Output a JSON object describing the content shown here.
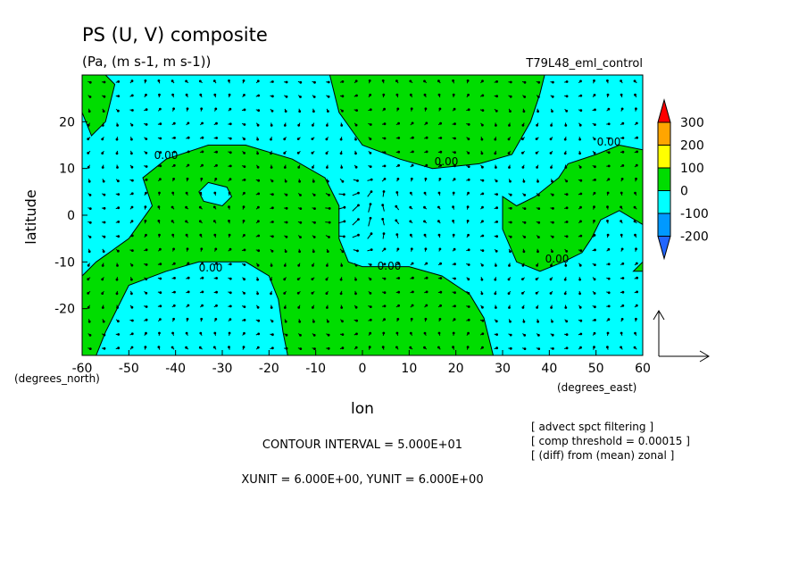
{
  "chart_data": {
    "type": "heatmap",
    "title": "PS (U, V) composite",
    "subtitle": "(Pa, (m s-1, m s-1))",
    "run_label": "T79L48_eml_control",
    "xlabel": "lon",
    "ylabel": "latitude",
    "x_unit_label": "(degrees_east)",
    "y_unit_label": "(degrees_north)",
    "xlim": [
      -60,
      60
    ],
    "ylim": [
      -30,
      30
    ],
    "x_ticks": [
      "-60",
      "-50",
      "-40",
      "-30",
      "-20",
      "-10",
      "0",
      "10",
      "20",
      "30",
      "40",
      "50",
      "60"
    ],
    "y_ticks": [
      "20",
      "10",
      "0",
      "-10",
      "-20"
    ],
    "contour_label": "0.00",
    "colorbar": {
      "levels": [
        "300",
        "200",
        "100",
        "0",
        "-100",
        "-200"
      ],
      "colors": [
        "#ff0000",
        "#ffa500",
        "#ffff00",
        "#00dd00",
        "#00ffff",
        "#0099ff",
        "#2266ff"
      ]
    },
    "notes": {
      "contour_interval": "CONTOUR INTERVAL = 5.000E+01",
      "vector_units": "XUNIT = 6.000E+00, YUNIT = 6.000E+00",
      "filter_1": "[ advect spct filtering ]",
      "filter_2": "[ comp threshold = 0.00015 ]",
      "filter_3": "[ (diff) from (mean) zonal ]"
    },
    "positive_regions": [
      [
        [
          -60,
          22
        ],
        [
          -58,
          17
        ],
        [
          -55,
          20
        ],
        [
          -53,
          28
        ],
        [
          -55,
          30
        ],
        [
          -60,
          30
        ]
      ],
      [
        [
          -60,
          -13
        ],
        [
          -57,
          -10
        ],
        [
          -50,
          -5
        ],
        [
          -45,
          2
        ],
        [
          -47,
          8
        ],
        [
          -42,
          12
        ],
        [
          -33,
          15
        ],
        [
          -25,
          15
        ],
        [
          -15,
          12
        ],
        [
          -8,
          8
        ],
        [
          -5,
          2
        ],
        [
          -5,
          -5
        ],
        [
          -3,
          -10
        ],
        [
          0,
          -11
        ],
        [
          10,
          -11
        ],
        [
          17,
          -13
        ],
        [
          23,
          -17
        ],
        [
          26,
          -22
        ],
        [
          27,
          -26
        ],
        [
          28,
          -30
        ],
        [
          -16,
          -30
        ],
        [
          -17,
          -25
        ],
        [
          -18,
          -18
        ],
        [
          -20,
          -13
        ],
        [
          -25,
          -10
        ],
        [
          -35,
          -10
        ],
        [
          -42,
          -12
        ],
        [
          -50,
          -15
        ],
        [
          -55,
          -25
        ],
        [
          -57,
          -30
        ],
        [
          -60,
          -30
        ]
      ],
      [
        [
          -7,
          30
        ],
        [
          -5,
          22
        ],
        [
          0,
          15
        ],
        [
          8,
          12
        ],
        [
          15,
          10
        ],
        [
          25,
          11
        ],
        [
          32,
          13
        ],
        [
          36,
          20
        ],
        [
          38,
          26
        ],
        [
          39,
          30
        ]
      ],
      [
        [
          30,
          4
        ],
        [
          30,
          -3
        ],
        [
          33,
          -10
        ],
        [
          38,
          -12
        ],
        [
          43,
          -10
        ],
        [
          47,
          -8
        ],
        [
          49,
          -5
        ],
        [
          51,
          -1
        ],
        [
          55,
          1
        ],
        [
          60,
          -2
        ],
        [
          60,
          -10
        ],
        [
          58,
          -12
        ],
        [
          60,
          -12
        ],
        [
          60,
          14
        ],
        [
          55,
          15
        ],
        [
          50,
          13
        ],
        [
          44,
          11
        ],
        [
          42,
          8
        ],
        [
          37,
          4
        ],
        [
          33,
          2
        ]
      ]
    ],
    "negative_regions": [
      [
        [
          -33,
          7
        ],
        [
          -29,
          6
        ],
        [
          -28,
          4
        ],
        [
          -30,
          2
        ],
        [
          -34,
          3
        ],
        [
          -35,
          5
        ]
      ]
    ]
  }
}
